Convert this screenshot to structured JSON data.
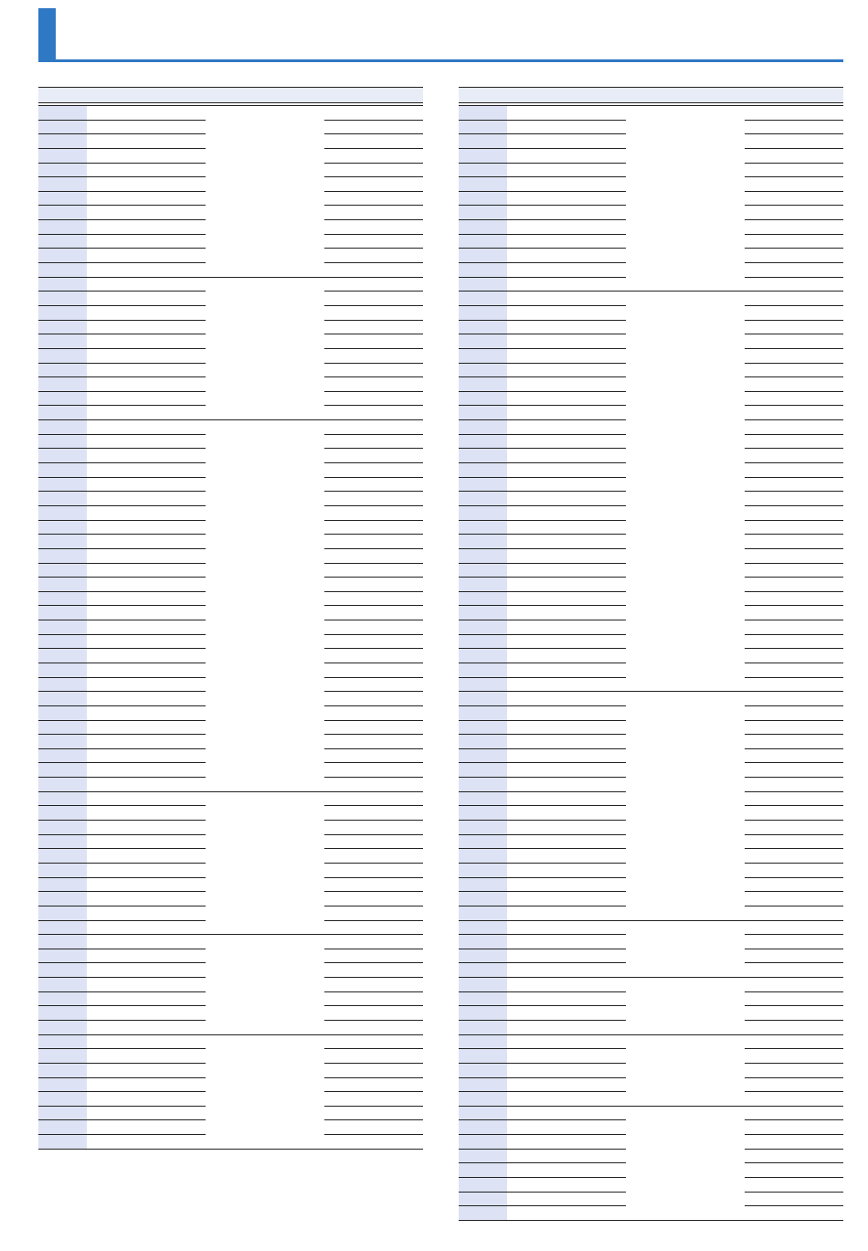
{
  "page": {
    "title": "",
    "accent_color": "#2f78c4",
    "header_fill": "#e8ecf7",
    "first_column_fill": "#dde3f4"
  },
  "tables": [
    {
      "name": "left-table",
      "headers": [
        "",
        "",
        "",
        ""
      ]
    },
    {
      "name": "right-table",
      "headers": [
        "",
        "",
        "",
        ""
      ]
    }
  ]
}
